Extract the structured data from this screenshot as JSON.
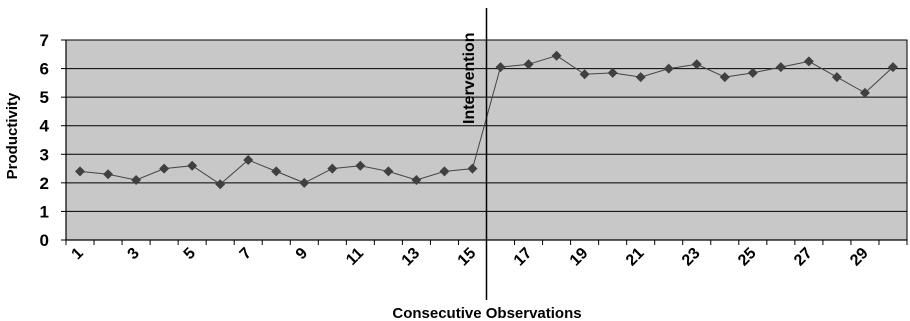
{
  "chart_data": {
    "type": "line",
    "xlabel": "Consecutive Observations",
    "ylabel": "Productivity",
    "annotation": "Intervention",
    "ylim": [
      0,
      7
    ],
    "yticks": [
      0,
      1,
      2,
      3,
      4,
      5,
      6,
      7
    ],
    "x": [
      1,
      2,
      3,
      4,
      5,
      6,
      7,
      8,
      9,
      10,
      11,
      12,
      13,
      14,
      15,
      16,
      17,
      18,
      19,
      20,
      21,
      22,
      23,
      24,
      25,
      26,
      27,
      28,
      29,
      30
    ],
    "xticks_labeled": [
      "1",
      "3",
      "5",
      "7",
      "9",
      "11",
      "13",
      "15",
      "17",
      "19",
      "21",
      "23",
      "25",
      "27",
      "29"
    ],
    "values": [
      2.4,
      2.3,
      2.1,
      2.5,
      2.6,
      1.95,
      2.8,
      2.4,
      2.0,
      2.5,
      2.6,
      2.4,
      2.1,
      2.4,
      2.5,
      6.05,
      6.15,
      6.45,
      5.8,
      5.85,
      5.7,
      6.0,
      6.15,
      5.7,
      5.85,
      6.05,
      6.25,
      5.7,
      5.15,
      6.05
    ],
    "intervention_after": 15,
    "grid": true,
    "colors": {
      "plot_background": "#c8c8c8",
      "gridline": "#000000",
      "line": "#444444",
      "marker": "#404040"
    }
  }
}
